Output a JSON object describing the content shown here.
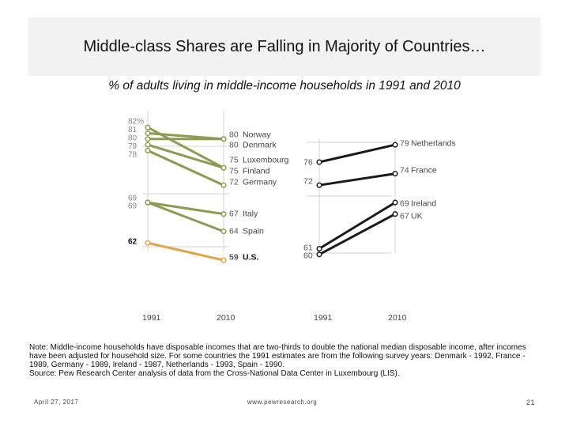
{
  "slide": {
    "title": "Middle-class Shares are Falling in Majority of Countries…",
    "subtitle": "% of adults living in middle-income households in 1991 and 2010",
    "note": "Note: Middle-income households have disposable incomes that are two-thirds to double the national median disposable income, after incomes have been adjusted for household size. For some countries the 1991 estimates are from the following survey years: Denmark - 1992, France - 1989, Germany - 1989, Ireland - 1987, Netherlands - 1993, Spain - 1990.",
    "source": "Source: Pew Research Center analysis of data from the Cross-National Data Center in Luxembourg (LIS).",
    "date": "April 27, 2017",
    "url": "www.pewresearch.org",
    "page_number": "21"
  },
  "colors": {
    "falling": "#8c9a52",
    "us": "#e0a24a",
    "rising": "#1a1a1a",
    "grid": "#d3d3d3",
    "label": "#333333"
  },
  "chart_data": [
    {
      "type": "line",
      "panel": "falling",
      "x": [
        "1991",
        "2010"
      ],
      "start_labels": [
        "82%",
        "81",
        "80",
        "79",
        "78",
        "69",
        "69",
        "62"
      ],
      "series": [
        {
          "name": "Norway",
          "values": [
            81,
            80
          ],
          "end_label": "80"
        },
        {
          "name": "Denmark",
          "values": [
            80,
            80
          ],
          "end_label": "80"
        },
        {
          "name": "Luxembourg",
          "values": [
            82,
            75
          ],
          "end_label": "75"
        },
        {
          "name": "Finland",
          "values": [
            79,
            75
          ],
          "end_label": "75"
        },
        {
          "name": "Germany",
          "values": [
            78,
            72
          ],
          "end_label": "72"
        },
        {
          "name": "Italy",
          "values": [
            69,
            67
          ],
          "end_label": "67"
        },
        {
          "name": "Spain",
          "values": [
            69,
            64
          ],
          "end_label": "64"
        },
        {
          "name": "U.S.",
          "values": [
            62,
            59
          ],
          "end_label": "59"
        }
      ]
    },
    {
      "type": "line",
      "panel": "rising",
      "x": [
        "1991",
        "2010"
      ],
      "series": [
        {
          "name": "Netherlands",
          "values": [
            76,
            79
          ],
          "start_label": "76",
          "end_label": "79"
        },
        {
          "name": "France",
          "values": [
            72,
            74
          ],
          "start_label": "72",
          "end_label": "74"
        },
        {
          "name": "Ireland",
          "values": [
            61,
            69
          ],
          "start_label": "61",
          "end_label": "69"
        },
        {
          "name": "UK",
          "values": [
            60,
            67
          ],
          "start_label": "60",
          "end_label": "67"
        }
      ]
    }
  ]
}
